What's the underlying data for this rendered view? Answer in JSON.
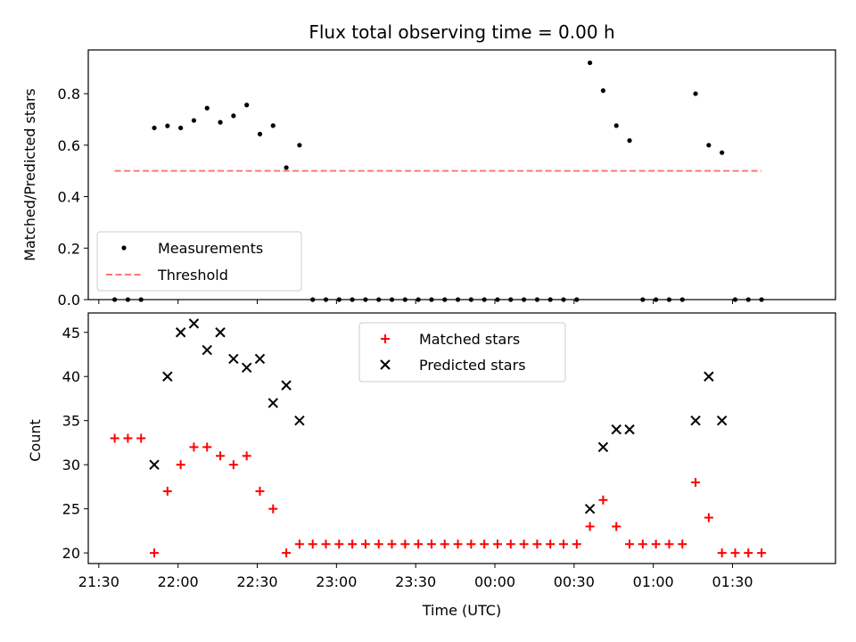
{
  "chart_data": [
    {
      "type": "scatter",
      "title": "Flux total observing time = 0.00 h",
      "xlabel": "",
      "ylabel": "Matched/Predicted stars",
      "ylim": [
        0,
        0.97
      ],
      "yticks": [
        "0.0",
        "0.2",
        "0.4",
        "0.6",
        "0.8"
      ],
      "x_axis": "time",
      "xlim": [
        "21:26",
        "02:09"
      ],
      "grid": false,
      "legend_position": "lower-left",
      "series": [
        {
          "name": "Measurements",
          "marker": "dot",
          "color": "#000000",
          "points": [
            [
              "21:36",
              0
            ],
            [
              "21:41",
              0
            ],
            [
              "21:46",
              0
            ],
            [
              "21:51",
              0.667
            ],
            [
              "21:56",
              0.675
            ],
            [
              "22:01",
              0.667
            ],
            [
              "22:06",
              0.696
            ],
            [
              "22:11",
              0.744
            ],
            [
              "22:16",
              0.689
            ],
            [
              "22:21",
              0.714
            ],
            [
              "22:26",
              0.756
            ],
            [
              "22:31",
              0.643
            ],
            [
              "22:36",
              0.676
            ],
            [
              "22:41",
              0.513
            ],
            [
              "22:46",
              0.6
            ],
            [
              "22:51",
              0
            ],
            [
              "22:56",
              0
            ],
            [
              "23:01",
              0
            ],
            [
              "23:06",
              0
            ],
            [
              "23:11",
              0
            ],
            [
              "23:16",
              0
            ],
            [
              "23:21",
              0
            ],
            [
              "23:26",
              0
            ],
            [
              "23:31",
              0
            ],
            [
              "23:36",
              0
            ],
            [
              "23:41",
              0
            ],
            [
              "23:46",
              0
            ],
            [
              "23:51",
              0
            ],
            [
              "23:56",
              0
            ],
            [
              "00:01",
              0
            ],
            [
              "00:06",
              0
            ],
            [
              "00:11",
              0
            ],
            [
              "00:16",
              0
            ],
            [
              "00:21",
              0
            ],
            [
              "00:26",
              0
            ],
            [
              "00:31",
              0
            ],
            [
              "00:36",
              0.92
            ],
            [
              "00:41",
              0.812
            ],
            [
              "00:46",
              0.676
            ],
            [
              "00:51",
              0.618
            ],
            [
              "00:56",
              0
            ],
            [
              "01:01",
              0
            ],
            [
              "01:06",
              0
            ],
            [
              "01:11",
              0
            ],
            [
              "01:16",
              0.8
            ],
            [
              "01:21",
              0.6
            ],
            [
              "01:26",
              0.571
            ],
            [
              "01:31",
              0
            ],
            [
              "01:36",
              0
            ],
            [
              "01:41",
              0
            ]
          ]
        },
        {
          "name": "Threshold",
          "style": "dashed",
          "color": "#ff7777",
          "points": [
            [
              "21:36",
              0.5
            ],
            [
              "01:41",
              0.5
            ]
          ]
        }
      ]
    },
    {
      "type": "scatter",
      "title": "",
      "xlabel": "Time (UTC)",
      "ylabel": "Count",
      "ylim": [
        18.8,
        47.2
      ],
      "yticks": [
        "20",
        "25",
        "30",
        "35",
        "40",
        "45"
      ],
      "x_axis": "time",
      "xlim": [
        "21:26",
        "02:09"
      ],
      "xticks": [
        "21:30",
        "22:00",
        "22:30",
        "23:00",
        "23:30",
        "00:00",
        "00:30",
        "01:00",
        "01:30"
      ],
      "grid": false,
      "legend_position": "upper-center",
      "series": [
        {
          "name": "Matched stars",
          "marker": "plus",
          "color": "#ff0000",
          "points": [
            [
              "21:36",
              33
            ],
            [
              "21:41",
              33
            ],
            [
              "21:46",
              33
            ],
            [
              "21:51",
              20
            ],
            [
              "21:56",
              27
            ],
            [
              "22:01",
              30
            ],
            [
              "22:06",
              32
            ],
            [
              "22:11",
              32
            ],
            [
              "22:16",
              31
            ],
            [
              "22:21",
              30
            ],
            [
              "22:26",
              31
            ],
            [
              "22:31",
              27
            ],
            [
              "22:36",
              25
            ],
            [
              "22:41",
              20
            ],
            [
              "22:46",
              21
            ],
            [
              "22:51",
              21
            ],
            [
              "22:56",
              21
            ],
            [
              "23:01",
              21
            ],
            [
              "23:06",
              21
            ],
            [
              "23:11",
              21
            ],
            [
              "23:16",
              21
            ],
            [
              "23:21",
              21
            ],
            [
              "23:26",
              21
            ],
            [
              "23:31",
              21
            ],
            [
              "23:36",
              21
            ],
            [
              "23:41",
              21
            ],
            [
              "23:46",
              21
            ],
            [
              "23:51",
              21
            ],
            [
              "23:56",
              21
            ],
            [
              "00:01",
              21
            ],
            [
              "00:06",
              21
            ],
            [
              "00:11",
              21
            ],
            [
              "00:16",
              21
            ],
            [
              "00:21",
              21
            ],
            [
              "00:26",
              21
            ],
            [
              "00:31",
              21
            ],
            [
              "00:36",
              23
            ],
            [
              "00:41",
              26
            ],
            [
              "00:46",
              23
            ],
            [
              "00:51",
              21
            ],
            [
              "00:56",
              21
            ],
            [
              "01:01",
              21
            ],
            [
              "01:06",
              21
            ],
            [
              "01:11",
              21
            ],
            [
              "01:16",
              28
            ],
            [
              "01:21",
              24
            ],
            [
              "01:26",
              20
            ],
            [
              "01:31",
              20
            ],
            [
              "01:36",
              20
            ],
            [
              "01:41",
              20
            ]
          ]
        },
        {
          "name": "Predicted stars",
          "marker": "x",
          "color": "#000000",
          "points": [
            [
              "21:51",
              30
            ],
            [
              "21:56",
              40
            ],
            [
              "22:01",
              45
            ],
            [
              "22:06",
              46
            ],
            [
              "22:11",
              43
            ],
            [
              "22:16",
              45
            ],
            [
              "22:21",
              42
            ],
            [
              "22:26",
              41
            ],
            [
              "22:31",
              42
            ],
            [
              "22:36",
              37
            ],
            [
              "22:41",
              39
            ],
            [
              "22:46",
              35
            ],
            [
              "00:36",
              25
            ],
            [
              "00:41",
              32
            ],
            [
              "00:46",
              34
            ],
            [
              "00:51",
              34
            ],
            [
              "01:16",
              35
            ],
            [
              "01:21",
              40
            ],
            [
              "01:26",
              35
            ]
          ]
        }
      ]
    }
  ]
}
